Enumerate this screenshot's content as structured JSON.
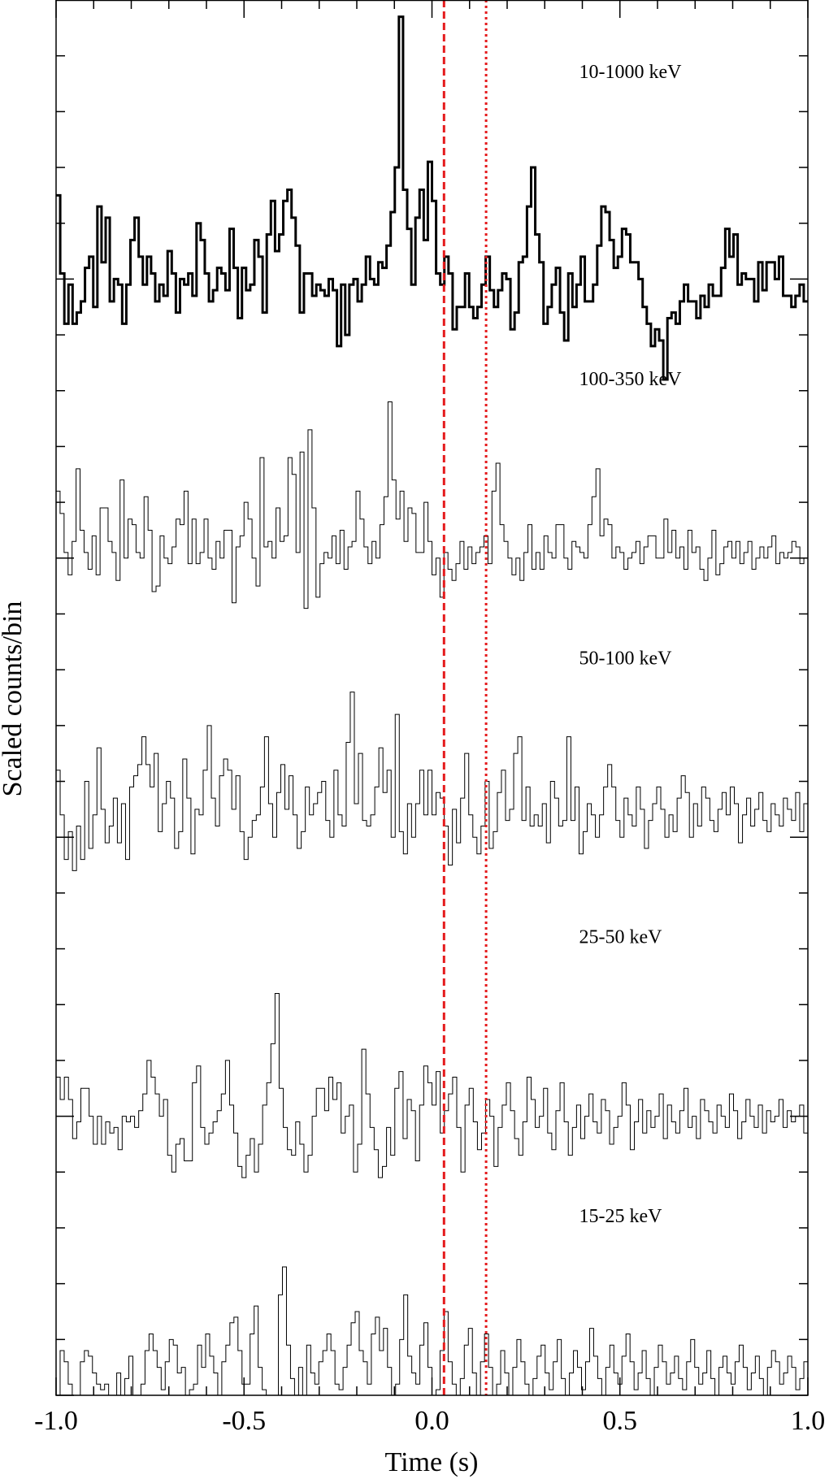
{
  "chart_data": {
    "type": "line",
    "step": true,
    "title": "",
    "xlabel": "Time (s)",
    "ylabel": "Scaled counts/bin",
    "xlim": [
      -1.0,
      1.0
    ],
    "ylim": [
      0,
      25
    ],
    "x_ticks": [
      "-1.0",
      "-0.5",
      "0.0",
      "0.5",
      "1.0"
    ],
    "x_tick_values": [
      -1.0,
      -0.5,
      0.0,
      0.5,
      1.0
    ],
    "bin_width_s": 0.02,
    "x_start_s": -1.0,
    "grid": false,
    "legend": "none",
    "vlines": [
      {
        "x": 0.032,
        "color": "#e41a1c",
        "style": "dashed"
      },
      {
        "x": 0.144,
        "color": "#e41a1c",
        "style": "dotted"
      }
    ],
    "series": [
      {
        "name": "10-1000 keV",
        "baseline": 20,
        "label_x": 0.4,
        "label_y": 23.6,
        "line_width": 3,
        "values": [
          21.5,
          20.1,
          19.2,
          19.9,
          19.2,
          19.4,
          19.6,
          20.2,
          20.4,
          19.5,
          21.3,
          20.3,
          21.1,
          19.6,
          20.0,
          19.9,
          19.2,
          19.9,
          20.7,
          21.1,
          20.4,
          19.9,
          20.4,
          20.1,
          19.6,
          19.9,
          19.7,
          20.5,
          20.1,
          19.4,
          20.0,
          19.9,
          20.1,
          19.7,
          21.0,
          20.7,
          20.1,
          19.6,
          19.8,
          20.2,
          20.1,
          19.8,
          20.9,
          20.2,
          19.3,
          20.2,
          19.8,
          19.9,
          20.7,
          20.4,
          19.4,
          20.8,
          21.4,
          20.5,
          20.8,
          21.4,
          21.6,
          21.1,
          20.6,
          19.4,
          20.1,
          20.1,
          19.7,
          19.9,
          19.8,
          19.7,
          20.0,
          19.8,
          18.8,
          19.9,
          19.0,
          19.9,
          20.0,
          19.6,
          19.9,
          20.4,
          20.0,
          19.9,
          20.3,
          20.2,
          20.6,
          21.2,
          22.0,
          24.7,
          21.6,
          20.9,
          19.9,
          21.1,
          21.6,
          20.7,
          22.1,
          21.4,
          20.1,
          19.9,
          20.4,
          20.1,
          19.1,
          19.5,
          19.5,
          20.1,
          19.5,
          19.3,
          19.5,
          19.9,
          20.4,
          19.8,
          19.5,
          19.8,
          20.1,
          20.0,
          19.1,
          19.4,
          20.3,
          20.4,
          21.3,
          22.0,
          20.8,
          20.3,
          19.2,
          19.5,
          19.9,
          20.2,
          19.4,
          18.9,
          20.1,
          19.5,
          19.9,
          20.4,
          19.6,
          19.6,
          19.9,
          20.6,
          21.3,
          21.2,
          20.7,
          20.2,
          20.4,
          20.9,
          20.8,
          20.3,
          20.3,
          20.0,
          19.5,
          19.2,
          18.8,
          19.1,
          18.9,
          18.2,
          19.3,
          19.4,
          19.2,
          19.6,
          19.9,
          19.6,
          19.6,
          19.3,
          19.7,
          19.5,
          19.9,
          19.7,
          19.7,
          20.2,
          20.9,
          20.4,
          20.8,
          19.9,
          20.1,
          20.0,
          20.0,
          19.6,
          20.3,
          19.8,
          20.3,
          20.3,
          20.0,
          20.4,
          19.7,
          19.7,
          19.5,
          19.7,
          19.9,
          19.6
        ]
      },
      {
        "name": "100-350 keV",
        "baseline": 15,
        "label_x": 0.4,
        "label_y": 18.1,
        "line_width": 1,
        "values": [
          16.2,
          15.8,
          15.1,
          14.7,
          15.3,
          16.6,
          15.5,
          15.1,
          14.8,
          15.4,
          14.7,
          15.9,
          15.9,
          15.3,
          15.1,
          14.6,
          16.4,
          15.0,
          15.7,
          15.6,
          15.1,
          15.0,
          16.1,
          15.5,
          14.4,
          14.5,
          15.4,
          15.0,
          14.9,
          15.2,
          15.7,
          15.6,
          16.2,
          14.9,
          15.7,
          14.9,
          15.1,
          15.7,
          15.0,
          14.8,
          15.3,
          15.0,
          15.5,
          15.5,
          14.2,
          15.2,
          15.4,
          16.0,
          15.7,
          15.0,
          14.5,
          16.8,
          15.2,
          15.3,
          15.0,
          15.9,
          15.3,
          15.4,
          16.8,
          16.5,
          15.1,
          16.9,
          14.1,
          17.3,
          15.9,
          14.3,
          14.9,
          15.1,
          15.0,
          15.4,
          14.9,
          15.5,
          14.8,
          15.2,
          15.3,
          16.2,
          15.7,
          15.2,
          14.9,
          15.3,
          15.0,
          15.6,
          16.1,
          17.8,
          16.4,
          15.7,
          16.2,
          15.3,
          15.9,
          15.8,
          15.1,
          15.1,
          16.0,
          15.3,
          14.7,
          15.0,
          14.3,
          15.1,
          14.8,
          14.6,
          14.9,
          15.3,
          14.8,
          15.2,
          14.9,
          15.1,
          15.2,
          15.4,
          14.9,
          16.2,
          16.7,
          15.6,
          15.3,
          15.0,
          14.7,
          15.0,
          14.6,
          15.1,
          15.6,
          14.8,
          15.1,
          14.8,
          15.4,
          15.1,
          15.0,
          15.6,
          15.6,
          15.0,
          14.8,
          15.3,
          15.2,
          15.1,
          15.0,
          15.6,
          16.1,
          16.6,
          15.4,
          15.7,
          15.6,
          15.0,
          15.2,
          15.1,
          14.8,
          15.0,
          15.1,
          15.3,
          14.9,
          15.2,
          15.4,
          15.4,
          15.0,
          15.0,
          15.7,
          15.1,
          15.5,
          15.0,
          15.2,
          14.8,
          15.5,
          15.1,
          15.2,
          14.8,
          14.6,
          15.0,
          15.5,
          14.7,
          14.9,
          15.2,
          15.3,
          15.0,
          15.3,
          14.9,
          15.1,
          15.3,
          14.8,
          15.0,
          15.2,
          15.0,
          15.2,
          15.4,
          14.9,
          15.1,
          15.0,
          15.1,
          15.3,
          15.2,
          14.9,
          15.0
        ]
      },
      {
        "name": "50-100 keV",
        "baseline": 10,
        "label_x": 0.4,
        "label_y": 13.1,
        "line_width": 1,
        "values": [
          11.2,
          10.4,
          9.6,
          10.1,
          9.4,
          10.2,
          9.6,
          11.0,
          9.8,
          10.4,
          11.6,
          10.5,
          9.9,
          10.2,
          10.7,
          9.9,
          10.6,
          9.6,
          10.9,
          11.1,
          11.3,
          11.8,
          11.3,
          10.9,
          11.5,
          10.1,
          10.6,
          11.0,
          10.7,
          9.8,
          10.1,
          11.4,
          10.7,
          9.7,
          10.5,
          10.4,
          11.2,
          12.0,
          10.7,
          10.2,
          11.1,
          11.4,
          11.2,
          10.5,
          11.1,
          10.1,
          9.6,
          10.0,
          10.3,
          10.4,
          10.9,
          11.8,
          10.6,
          10.0,
          10.8,
          11.3,
          10.5,
          11.1,
          10.4,
          9.8,
          10.1,
          10.9,
          10.4,
          10.6,
          10.8,
          11.0,
          10.3,
          10.0,
          11.2,
          10.4,
          10.2,
          11.7,
          12.6,
          10.6,
          11.5,
          10.3,
          10.2,
          10.4,
          10.9,
          11.6,
          10.8,
          11.2,
          10.0,
          12.2,
          10.1,
          9.7,
          10.6,
          10.0,
          10.6,
          11.2,
          10.4,
          11.2,
          10.4,
          10.8,
          10.7,
          10.2,
          9.5,
          10.5,
          9.9,
          10.7,
          11.5,
          10.4,
          10.0,
          9.7,
          10.2,
          11.0,
          9.8,
          10.1,
          10.8,
          11.2,
          10.3,
          10.5,
          11.5,
          11.8,
          10.3,
          10.9,
          10.2,
          10.4,
          10.2,
          10.6,
          9.9,
          11.0,
          10.7,
          10.2,
          10.3,
          11.8,
          10.3,
          10.9,
          9.7,
          10.1,
          10.6,
          10.4,
          10.0,
          10.4,
          10.9,
          11.3,
          10.9,
          10.3,
          10.0,
          10.7,
          10.4,
          10.2,
          10.9,
          10.5,
          9.8,
          10.3,
          10.6,
          10.9,
          10.5,
          10.0,
          10.4,
          10.1,
          10.7,
          11.1,
          10.8,
          10.0,
          10.6,
          10.2,
          10.9,
          10.7,
          10.3,
          10.1,
          10.5,
          10.8,
          10.4,
          10.9,
          10.6,
          9.9,
          10.4,
          10.7,
          10.2,
          10.5,
          10.8,
          10.3,
          10.1,
          10.6,
          10.4,
          10.2,
          10.7,
          10.5,
          10.3,
          10.8,
          10.1,
          10.6
        ]
      },
      {
        "name": "25-50 keV",
        "baseline": 5,
        "label_x": 0.4,
        "label_y": 8.1,
        "line_width": 1,
        "values": [
          5.7,
          5.3,
          5.7,
          5.3,
          4.6,
          4.9,
          5.5,
          5.5,
          5.0,
          4.5,
          5.0,
          4.5,
          4.9,
          4.7,
          4.8,
          4.4,
          5.0,
          4.9,
          5.0,
          4.8,
          5.1,
          5.4,
          6.0,
          5.7,
          5.4,
          5.0,
          5.3,
          4.3,
          4.0,
          4.5,
          4.6,
          4.2,
          4.2,
          5.6,
          5.9,
          4.8,
          4.5,
          4.7,
          4.9,
          5.1,
          5.4,
          6.0,
          5.2,
          4.7,
          4.1,
          3.9,
          4.3,
          4.6,
          4.0,
          4.5,
          5.2,
          5.6,
          6.3,
          7.2,
          5.5,
          4.8,
          4.4,
          4.3,
          4.9,
          4.5,
          4.0,
          4.3,
          5.0,
          5.5,
          5.5,
          5.1,
          5.7,
          5.3,
          5.6,
          4.7,
          5.0,
          5.2,
          4.0,
          4.5,
          6.2,
          5.4,
          4.8,
          4.4,
          3.9,
          4.1,
          4.8,
          4.3,
          5.5,
          5.8,
          4.6,
          5.3,
          5.1,
          4.2,
          5.2,
          5.9,
          5.6,
          5.2,
          5.8,
          4.7,
          5.1,
          5.4,
          5.7,
          4.8,
          4.0,
          5.2,
          5.5,
          4.9,
          4.4,
          4.7,
          5.3,
          5.0,
          4.1,
          4.8,
          5.2,
          5.6,
          5.1,
          4.6,
          4.3,
          4.9,
          5.7,
          5.3,
          4.8,
          5.0,
          5.5,
          4.7,
          4.4,
          5.1,
          5.6,
          4.9,
          4.3,
          4.8,
          5.2,
          4.6,
          5.0,
          5.4,
          4.9,
          4.7,
          5.3,
          5.1,
          4.5,
          4.8,
          5.0,
          5.6,
          5.2,
          4.4,
          4.9,
          5.3,
          4.7,
          5.1,
          4.8,
          5.0,
          5.4,
          4.6,
          5.2,
          4.9,
          4.7,
          5.1,
          5.5,
          4.8,
          5.0,
          4.6,
          5.3,
          5.1,
          4.9,
          4.7,
          5.2,
          5.0,
          4.8,
          5.4,
          5.1,
          4.6,
          4.9,
          5.3,
          5.0,
          4.8,
          5.2,
          4.7,
          5.1,
          4.9,
          5.0,
          5.3,
          4.8,
          5.1,
          4.9,
          5.0,
          5.2,
          4.7
        ]
      },
      {
        "name": "15-25 keV",
        "baseline": 0,
        "label_x": 0.4,
        "label_y": 3.1,
        "line_width": 1,
        "values": [
          -0.3,
          0.8,
          0.6,
          0.2,
          -0.7,
          -0.9,
          0.6,
          0.8,
          0.7,
          0.4,
          0.2,
          0.1,
          0.2,
          -0.1,
          -0.6,
          0.4,
          0.0,
          0.3,
          0.7,
          -0.1,
          -0.1,
          0.2,
          0.8,
          1.1,
          0.8,
          0.5,
          0.1,
          0.6,
          1.0,
          0.9,
          0.4,
          0.5,
          0.0,
          0.1,
          0.2,
          0.9,
          0.5,
          1.1,
          0.7,
          0.4,
          -0.7,
          0.6,
          0.9,
          1.3,
          1.4,
          0.8,
          0.2,
          0.2,
          1.1,
          1.6,
          0.5,
          0.1,
          -0.1,
          -0.3,
          0.0,
          1.8,
          2.3,
          0.9,
          0.3,
          -0.2,
          0.5,
          -0.1,
          0.9,
          0.4,
          0.2,
          0.6,
          0.8,
          1.1,
          0.8,
          0.2,
          0.1,
          0.5,
          0.9,
          1.3,
          1.5,
          0.8,
          0.6,
          0.2,
          1.1,
          1.4,
          0.8,
          1.2,
          0.5,
          -0.6,
          0.2,
          1.0,
          1.8,
          0.7,
          0.4,
          0.2,
          0.9,
          1.3,
          0.5,
          -0.4,
          0.1,
          0.8,
          1.5,
          0.6,
          0.2,
          -0.2,
          0.3,
          0.9,
          1.2,
          0.4,
          0.0,
          0.6,
          1.1,
          0.5,
          -0.3,
          0.2,
          0.8,
          0.4,
          -0.1,
          0.5,
          1.0,
          0.6,
          0.2,
          -0.5,
          0.3,
          0.7,
          0.9,
          0.4,
          0.1,
          0.6,
          1.0,
          0.3,
          -0.2,
          0.4,
          0.8,
          0.5,
          0.1,
          0.6,
          1.2,
          0.7,
          0.3,
          0.0,
          0.5,
          0.9,
          0.4,
          0.2,
          0.7,
          1.1,
          0.6,
          0.1,
          0.4,
          0.8,
          0.3,
          0.0,
          0.5,
          0.9,
          0.6,
          0.2,
          0.4,
          0.7,
          0.3,
          0.1,
          0.6,
          1.0,
          0.5,
          0.2,
          0.4,
          0.8,
          0.3,
          0.0,
          0.5,
          0.7,
          0.4,
          0.2,
          0.6,
          0.9,
          0.5,
          0.1,
          0.4,
          0.7,
          0.3,
          0.0,
          0.5,
          0.8,
          0.6,
          0.2,
          0.4,
          0.7,
          0.5,
          0.1,
          0.3,
          0.6
        ]
      }
    ]
  }
}
